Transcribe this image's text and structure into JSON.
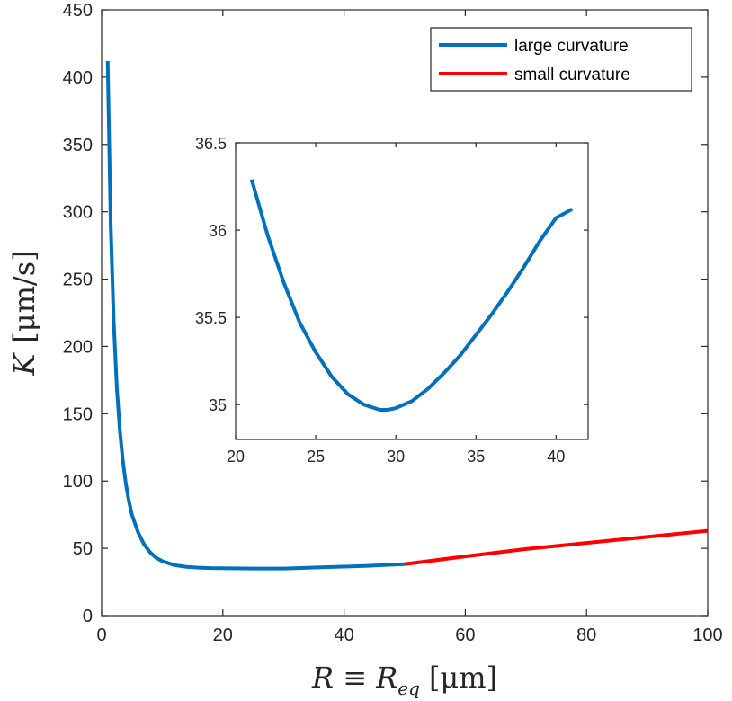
{
  "chart_data": {
    "type": "line",
    "colors": {
      "large": "#0072bd",
      "small": "#ff0000"
    },
    "main": {
      "xlim": [
        0,
        100
      ],
      "ylim": [
        0,
        450
      ],
      "xticks": [
        0,
        20,
        40,
        60,
        80,
        100
      ],
      "yticks": [
        0,
        50,
        100,
        150,
        200,
        250,
        300,
        350,
        400,
        450
      ],
      "xlabel": "R ≡ R",
      "xlabel_sub": "eq",
      "xlabel_unit": "[μm]",
      "ylabel": "K",
      "ylabel_unit": "[μm/s]",
      "series": [
        {
          "name": "large curvature",
          "color_key": "large",
          "x": [
            1,
            1.5,
            2,
            2.5,
            3,
            3.5,
            4,
            4.5,
            5,
            6,
            7,
            8,
            9,
            10,
            12,
            14,
            16,
            18,
            20,
            22,
            25,
            28,
            30,
            33,
            36,
            40,
            44,
            47,
            50
          ],
          "y": [
            412,
            290,
            218,
            170,
            138,
            115,
            98,
            85,
            75,
            62,
            53,
            47,
            43,
            40.5,
            37.5,
            36.2,
            35.6,
            35.3,
            35.2,
            35.1,
            35.0,
            35.0,
            35.0,
            35.4,
            35.9,
            36.4,
            37.0,
            37.6,
            38.2
          ]
        },
        {
          "name": "small curvature",
          "color_key": "small",
          "x": [
            50,
            60,
            70,
            80,
            90,
            100
          ],
          "y": [
            38.2,
            44,
            49.5,
            54,
            58.5,
            63
          ]
        }
      ],
      "legend": [
        "large curvature",
        "small curvature"
      ],
      "legend_position": "top-right"
    },
    "inset": {
      "xlim": [
        20,
        42
      ],
      "ylim": [
        34.8,
        36.5
      ],
      "xticks": [
        20,
        25,
        30,
        35,
        40
      ],
      "yticks": [
        35,
        35.5,
        36,
        36.5
      ],
      "series": [
        {
          "name": "large curvature",
          "color_key": "large",
          "x": [
            21,
            22,
            23,
            24,
            25,
            26,
            27,
            28,
            29,
            29.5,
            30,
            31,
            32,
            33,
            34,
            35,
            36,
            37,
            38,
            39,
            40,
            41
          ],
          "y": [
            36.29,
            35.97,
            35.7,
            35.47,
            35.3,
            35.16,
            35.06,
            35.0,
            34.97,
            34.97,
            34.98,
            35.02,
            35.09,
            35.18,
            35.28,
            35.4,
            35.52,
            35.65,
            35.79,
            35.94,
            36.07,
            36.12
          ]
        }
      ]
    }
  }
}
